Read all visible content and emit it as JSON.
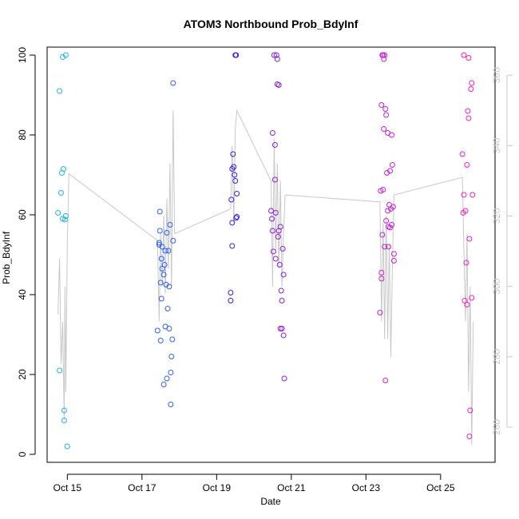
{
  "chart_data": {
    "type": "scatter",
    "title": "ATOM3 Northbound Prob_BdyInf",
    "xlabel": "Date",
    "ylabel": "Prob_BdyInf",
    "xlim": [
      "2024-10-14 11:00",
      "2024-10-26 11:00"
    ],
    "ylim": [
      -2,
      102
    ],
    "grid": false,
    "x_ticks": [
      "Oct 15",
      "Oct 17",
      "Oct 19",
      "Oct 21",
      "Oct 23",
      "Oct 25"
    ],
    "y_ticks": [
      0,
      20,
      40,
      60,
      80,
      100
    ],
    "y2_ticks": [
      260,
      280,
      300,
      320,
      340,
      360
    ],
    "y2_lim": [
      250,
      368
    ],
    "series": [
      {
        "color": "#1fb4e8",
        "points": [
          [
            "2024-10-14 18:00",
            60.5
          ],
          [
            "2024-10-14 19:00",
            91
          ],
          [
            "2024-10-14 19:00",
            21
          ],
          [
            "2024-10-14 20:00",
            65.5
          ],
          [
            "2024-10-14 20:30",
            70.5
          ],
          [
            "2024-10-14 21:00",
            99.5
          ],
          [
            "2024-10-14 21:00",
            59
          ],
          [
            "2024-10-14 21:30",
            71.5
          ],
          [
            "2024-10-14 22:00",
            11
          ],
          [
            "2024-10-14 22:00",
            8.5
          ],
          [
            "2024-10-14 22:30",
            58.8
          ],
          [
            "2024-10-14 23:00",
            100
          ],
          [
            "2024-10-14 23:00",
            59.7
          ],
          [
            "2024-10-15 00:00",
            2
          ]
        ]
      },
      {
        "color": "#2f5ff5",
        "points": [
          [
            "2024-10-17 10:00",
            31
          ],
          [
            "2024-10-17 11:00",
            53
          ],
          [
            "2024-10-17 11:00",
            52.5
          ],
          [
            "2024-10-17 11:30",
            56
          ],
          [
            "2024-10-17 11:30",
            60.8
          ],
          [
            "2024-10-17 12:00",
            43
          ],
          [
            "2024-10-17 12:00",
            28.5
          ],
          [
            "2024-10-17 12:30",
            39
          ],
          [
            "2024-10-17 12:30",
            49
          ],
          [
            "2024-10-17 13:00",
            52
          ],
          [
            "2024-10-17 13:00",
            46.5
          ],
          [
            "2024-10-17 14:00",
            45
          ],
          [
            "2024-10-17 14:00",
            17.5
          ],
          [
            "2024-10-17 14:30",
            47.5
          ],
          [
            "2024-10-17 15:00",
            51
          ],
          [
            "2024-10-17 15:00",
            32
          ],
          [
            "2024-10-17 15:30",
            42.5
          ],
          [
            "2024-10-17 16:00",
            55.5
          ],
          [
            "2024-10-17 16:00",
            19
          ],
          [
            "2024-10-17 16:30",
            36.5
          ],
          [
            "2024-10-17 17:00",
            51
          ],
          [
            "2024-10-17 17:30",
            42
          ],
          [
            "2024-10-17 17:30",
            31.5
          ],
          [
            "2024-10-17 18:00",
            57.5
          ],
          [
            "2024-10-17 18:30",
            12.5
          ],
          [
            "2024-10-17 18:30",
            20.5
          ],
          [
            "2024-10-17 19:00",
            24.5
          ],
          [
            "2024-10-17 19:30",
            28.8
          ],
          [
            "2024-10-17 20:00",
            53.5
          ],
          [
            "2024-10-17 20:00",
            93
          ]
        ]
      },
      {
        "color": "#3a1fe0",
        "points": [
          [
            "2024-10-19 09:00",
            38.5
          ],
          [
            "2024-10-19 09:00",
            40.5
          ],
          [
            "2024-10-19 09:30",
            63.8
          ],
          [
            "2024-10-19 10:00",
            58
          ],
          [
            "2024-10-19 10:00",
            52.2
          ],
          [
            "2024-10-19 10:00",
            71.5
          ],
          [
            "2024-10-19 10:30",
            75.2
          ],
          [
            "2024-10-19 11:00",
            72
          ],
          [
            "2024-10-19 11:30",
            70
          ],
          [
            "2024-10-19 12:00",
            68.5
          ],
          [
            "2024-10-19 12:30",
            59.2
          ],
          [
            "2024-10-19 13:00",
            59.5
          ],
          [
            "2024-10-19 13:00",
            65.3
          ],
          [
            "2024-10-19 12:00",
            100
          ],
          [
            "2024-10-19 12:30",
            100
          ]
        ]
      },
      {
        "color": "#8a1fe0",
        "points": [
          [
            "2024-10-20 11:00",
            61
          ],
          [
            "2024-10-20 11:30",
            59
          ],
          [
            "2024-10-20 12:00",
            80.5
          ],
          [
            "2024-10-20 12:00",
            56
          ],
          [
            "2024-10-20 12:30",
            50.8
          ],
          [
            "2024-10-20 13:00",
            100
          ],
          [
            "2024-10-20 13:30",
            77.5
          ],
          [
            "2024-10-20 13:30",
            68.8
          ],
          [
            "2024-10-20 14:00",
            60.5
          ],
          [
            "2024-10-20 14:00",
            49
          ],
          [
            "2024-10-20 14:30",
            100
          ],
          [
            "2024-10-20 15:00",
            92.7
          ],
          [
            "2024-10-20 15:00",
            99
          ],
          [
            "2024-10-20 15:30",
            54.5
          ],
          [
            "2024-10-20 16:00",
            56
          ],
          [
            "2024-10-20 16:00",
            92.5
          ],
          [
            "2024-10-20 16:30",
            47.5
          ],
          [
            "2024-10-20 17:00",
            57
          ],
          [
            "2024-10-20 17:00",
            31.5
          ],
          [
            "2024-10-20 17:30",
            41
          ],
          [
            "2024-10-20 18:00",
            38.5
          ],
          [
            "2024-10-20 18:00",
            31.5
          ],
          [
            "2024-10-20 18:30",
            51.5
          ],
          [
            "2024-10-20 19:00",
            45
          ],
          [
            "2024-10-20 19:00",
            29.8
          ],
          [
            "2024-10-20 19:30",
            19
          ]
        ]
      },
      {
        "color": "#c81fd8",
        "points": [
          [
            "2024-10-23 09:00",
            35.5
          ],
          [
            "2024-10-23 09:30",
            66
          ],
          [
            "2024-10-23 10:00",
            87.5
          ],
          [
            "2024-10-23 10:00",
            45.5
          ],
          [
            "2024-10-23 10:00",
            44
          ],
          [
            "2024-10-23 10:30",
            100
          ],
          [
            "2024-10-23 10:30",
            55
          ],
          [
            "2024-10-23 11:00",
            66.3
          ],
          [
            "2024-10-23 11:00",
            100
          ],
          [
            "2024-10-23 11:30",
            99
          ],
          [
            "2024-10-23 11:30",
            81.5
          ],
          [
            "2024-10-23 12:00",
            100
          ],
          [
            "2024-10-23 12:00",
            52
          ],
          [
            "2024-10-23 12:30",
            86.5
          ],
          [
            "2024-10-23 12:30",
            18.5
          ],
          [
            "2024-10-23 13:00",
            85
          ],
          [
            "2024-10-23 13:00",
            58.5
          ],
          [
            "2024-10-23 13:30",
            70.5
          ],
          [
            "2024-10-23 14:00",
            61
          ],
          [
            "2024-10-23 14:00",
            80.5
          ],
          [
            "2024-10-23 14:30",
            57
          ],
          [
            "2024-10-23 14:30",
            52
          ],
          [
            "2024-10-23 15:00",
            62.5
          ],
          [
            "2024-10-23 15:30",
            71
          ],
          [
            "2024-10-23 15:30",
            56.8
          ],
          [
            "2024-10-23 16:00",
            61.5
          ],
          [
            "2024-10-23 16:30",
            80
          ],
          [
            "2024-10-23 16:30",
            57.5
          ],
          [
            "2024-10-23 17:00",
            72.5
          ],
          [
            "2024-10-23 17:30",
            62
          ],
          [
            "2024-10-23 18:00",
            50.2
          ],
          [
            "2024-10-23 18:00",
            48.5
          ]
        ]
      },
      {
        "color": "#f01fc0",
        "points": [
          [
            "2024-10-25 14:00",
            75.2
          ],
          [
            "2024-10-25 14:30",
            60.5
          ],
          [
            "2024-10-25 15:00",
            100
          ],
          [
            "2024-10-25 15:00",
            65
          ],
          [
            "2024-10-25 15:30",
            38.5
          ],
          [
            "2024-10-25 16:00",
            61
          ],
          [
            "2024-10-25 16:30",
            48
          ],
          [
            "2024-10-25 17:00",
            72.5
          ],
          [
            "2024-10-25 17:00",
            37.5
          ],
          [
            "2024-10-25 17:30",
            86
          ],
          [
            "2024-10-25 18:00",
            99.3
          ],
          [
            "2024-10-25 18:00",
            84.2
          ],
          [
            "2024-10-25 18:30",
            54
          ],
          [
            "2024-10-25 18:30",
            4.5
          ],
          [
            "2024-10-25 19:00",
            11
          ],
          [
            "2024-10-25 19:30",
            91.5
          ],
          [
            "2024-10-25 20:00",
            93
          ],
          [
            "2024-10-25 20:00",
            39.2
          ],
          [
            "2024-10-25 20:30",
            65
          ]
        ]
      }
    ],
    "overlay_line": {
      "color": "#c8c8c8",
      "axis": "right",
      "points": [
        [
          "2024-10-14 18:00",
          292
        ],
        [
          "2024-10-14 19:00",
          308
        ],
        [
          "2024-10-14 20:00",
          278
        ],
        [
          "2024-10-14 21:00",
          290
        ],
        [
          "2024-10-14 22:00",
          262
        ],
        [
          "2024-10-14 22:30",
          300
        ],
        [
          "2024-10-14 23:00",
          270
        ],
        [
          "2024-10-15 00:00",
          312
        ],
        [
          "2024-10-15 01:00",
          332
        ],
        [
          "2024-10-17 10:00",
          313
        ],
        [
          "2024-10-17 11:00",
          290
        ],
        [
          "2024-10-17 12:00",
          315
        ],
        [
          "2024-10-17 13:00",
          300
        ],
        [
          "2024-10-17 14:00",
          320
        ],
        [
          "2024-10-17 15:00",
          298
        ],
        [
          "2024-10-17 16:00",
          325
        ],
        [
          "2024-10-17 17:00",
          305
        ],
        [
          "2024-10-17 18:00",
          335
        ],
        [
          "2024-10-17 19:00",
          300
        ],
        [
          "2024-10-17 20:00",
          350
        ],
        [
          "2024-10-17 21:00",
          315
        ],
        [
          "2024-10-19 09:00",
          322
        ],
        [
          "2024-10-19 10:00",
          340
        ],
        [
          "2024-10-19 11:00",
          318
        ],
        [
          "2024-10-19 12:00",
          345
        ],
        [
          "2024-10-19 13:00",
          350
        ],
        [
          "2024-10-20 11:00",
          330
        ],
        [
          "2024-10-20 12:00",
          300
        ],
        [
          "2024-10-20 13:00",
          342
        ],
        [
          "2024-10-20 14:00",
          310
        ],
        [
          "2024-10-20 15:00",
          335
        ],
        [
          "2024-10-20 16:00",
          305
        ],
        [
          "2024-10-20 17:00",
          330
        ],
        [
          "2024-10-20 18:00",
          300
        ],
        [
          "2024-10-20 19:00",
          315
        ],
        [
          "2024-10-20 20:00",
          326
        ],
        [
          "2024-10-23 09:00",
          324
        ],
        [
          "2024-10-23 10:00",
          290
        ],
        [
          "2024-10-23 11:00",
          318
        ],
        [
          "2024-10-23 12:00",
          285
        ],
        [
          "2024-10-23 13:00",
          320
        ],
        [
          "2024-10-23 14:00",
          285
        ],
        [
          "2024-10-23 15:00",
          312
        ],
        [
          "2024-10-23 16:00",
          280
        ],
        [
          "2024-10-23 17:00",
          305
        ],
        [
          "2024-10-23 18:00",
          326
        ],
        [
          "2024-10-25 14:00",
          331
        ],
        [
          "2024-10-25 15:00",
          310
        ],
        [
          "2024-10-25 16:00",
          290
        ],
        [
          "2024-10-25 17:00",
          315
        ],
        [
          "2024-10-25 18:00",
          270
        ],
        [
          "2024-10-25 19:00",
          300
        ],
        [
          "2024-10-25 20:00",
          255
        ],
        [
          "2024-10-25 21:00",
          290
        ]
      ]
    }
  }
}
